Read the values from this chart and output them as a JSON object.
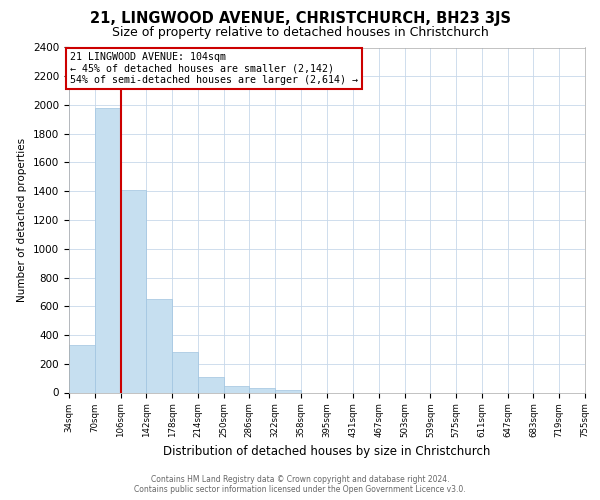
{
  "title": "21, LINGWOOD AVENUE, CHRISTCHURCH, BH23 3JS",
  "subtitle": "Size of property relative to detached houses in Christchurch",
  "xlabel": "Distribution of detached houses by size in Christchurch",
  "ylabel": "Number of detached properties",
  "bar_edges": [
    34,
    70,
    106,
    142,
    178,
    214,
    250,
    286,
    322,
    358,
    395,
    431,
    467,
    503,
    539,
    575,
    611,
    647,
    683,
    719,
    755
  ],
  "bar_heights": [
    330,
    1980,
    1410,
    650,
    280,
    105,
    45,
    30,
    20,
    0,
    0,
    0,
    0,
    0,
    0,
    0,
    0,
    0,
    0,
    0
  ],
  "bar_color": "#c6dff0",
  "bar_edge_color": "#a0c4e0",
  "property_line_x": 106,
  "property_line_color": "#cc0000",
  "annotation_title": "21 LINGWOOD AVENUE: 104sqm",
  "annotation_line1": "← 45% of detached houses are smaller (2,142)",
  "annotation_line2": "54% of semi-detached houses are larger (2,614) →",
  "annotation_box_color": "#ffffff",
  "annotation_box_edge": "#cc0000",
  "ylim": [
    0,
    2400
  ],
  "yticks": [
    0,
    200,
    400,
    600,
    800,
    1000,
    1200,
    1400,
    1600,
    1800,
    2000,
    2200,
    2400
  ],
  "tick_labels": [
    "34sqm",
    "70sqm",
    "106sqm",
    "142sqm",
    "178sqm",
    "214sqm",
    "250sqm",
    "286sqm",
    "322sqm",
    "358sqm",
    "395sqm",
    "431sqm",
    "467sqm",
    "503sqm",
    "539sqm",
    "575sqm",
    "611sqm",
    "647sqm",
    "683sqm",
    "719sqm",
    "755sqm"
  ],
  "footer_line1": "Contains HM Land Registry data © Crown copyright and database right 2024.",
  "footer_line2": "Contains public sector information licensed under the Open Government Licence v3.0.",
  "background_color": "#ffffff",
  "grid_color": "#c8d8ea",
  "title_fontsize": 10.5,
  "subtitle_fontsize": 9
}
